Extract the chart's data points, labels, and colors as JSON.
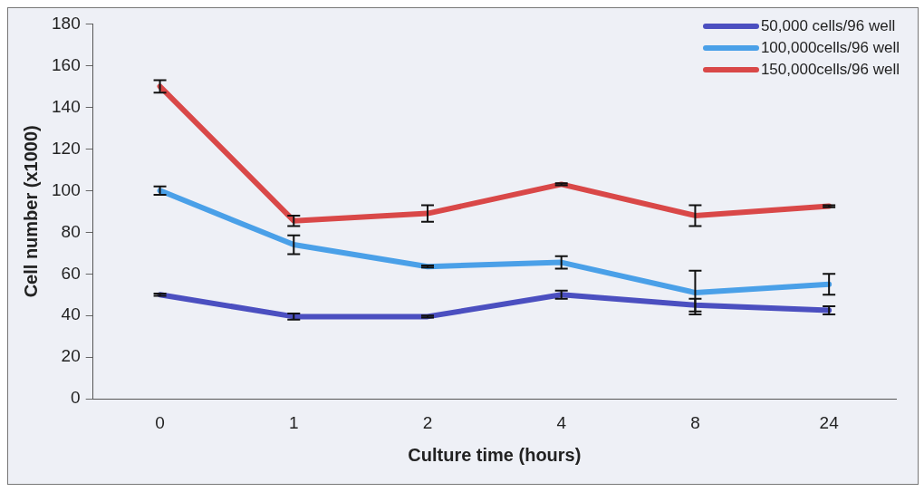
{
  "chart_data": {
    "type": "line",
    "xlabel": "Culture time (hours)",
    "ylabel": "Cell number (x1000)",
    "categories": [
      "0",
      "1",
      "2",
      "4",
      "8",
      "24"
    ],
    "ylim": [
      0,
      180
    ],
    "yticks": [
      0,
      20,
      40,
      60,
      80,
      100,
      120,
      140,
      160,
      180
    ],
    "grid": false,
    "legend": "top right",
    "line_style": "solid",
    "series": [
      {
        "name": "50,000 cells/96 well",
        "color": "#4b4fc0",
        "values": [
          50,
          39.5,
          39.5,
          50,
          45,
          42.5
        ],
        "errors": [
          0.5,
          1.5,
          0.5,
          2,
          3,
          2
        ]
      },
      {
        "name": "100,000cells/96 well",
        "color": "#4aa0e8",
        "values": [
          100,
          74,
          63.5,
          65.5,
          51,
          55
        ],
        "errors": [
          2,
          4.5,
          0.5,
          3,
          10.5,
          5
        ]
      },
      {
        "name": "150,000cells/96 well",
        "color": "#d94848",
        "values": [
          150,
          85.5,
          89,
          103,
          88,
          92.5
        ],
        "errors": [
          3,
          2.5,
          4,
          0.5,
          5,
          0.5
        ]
      }
    ]
  }
}
